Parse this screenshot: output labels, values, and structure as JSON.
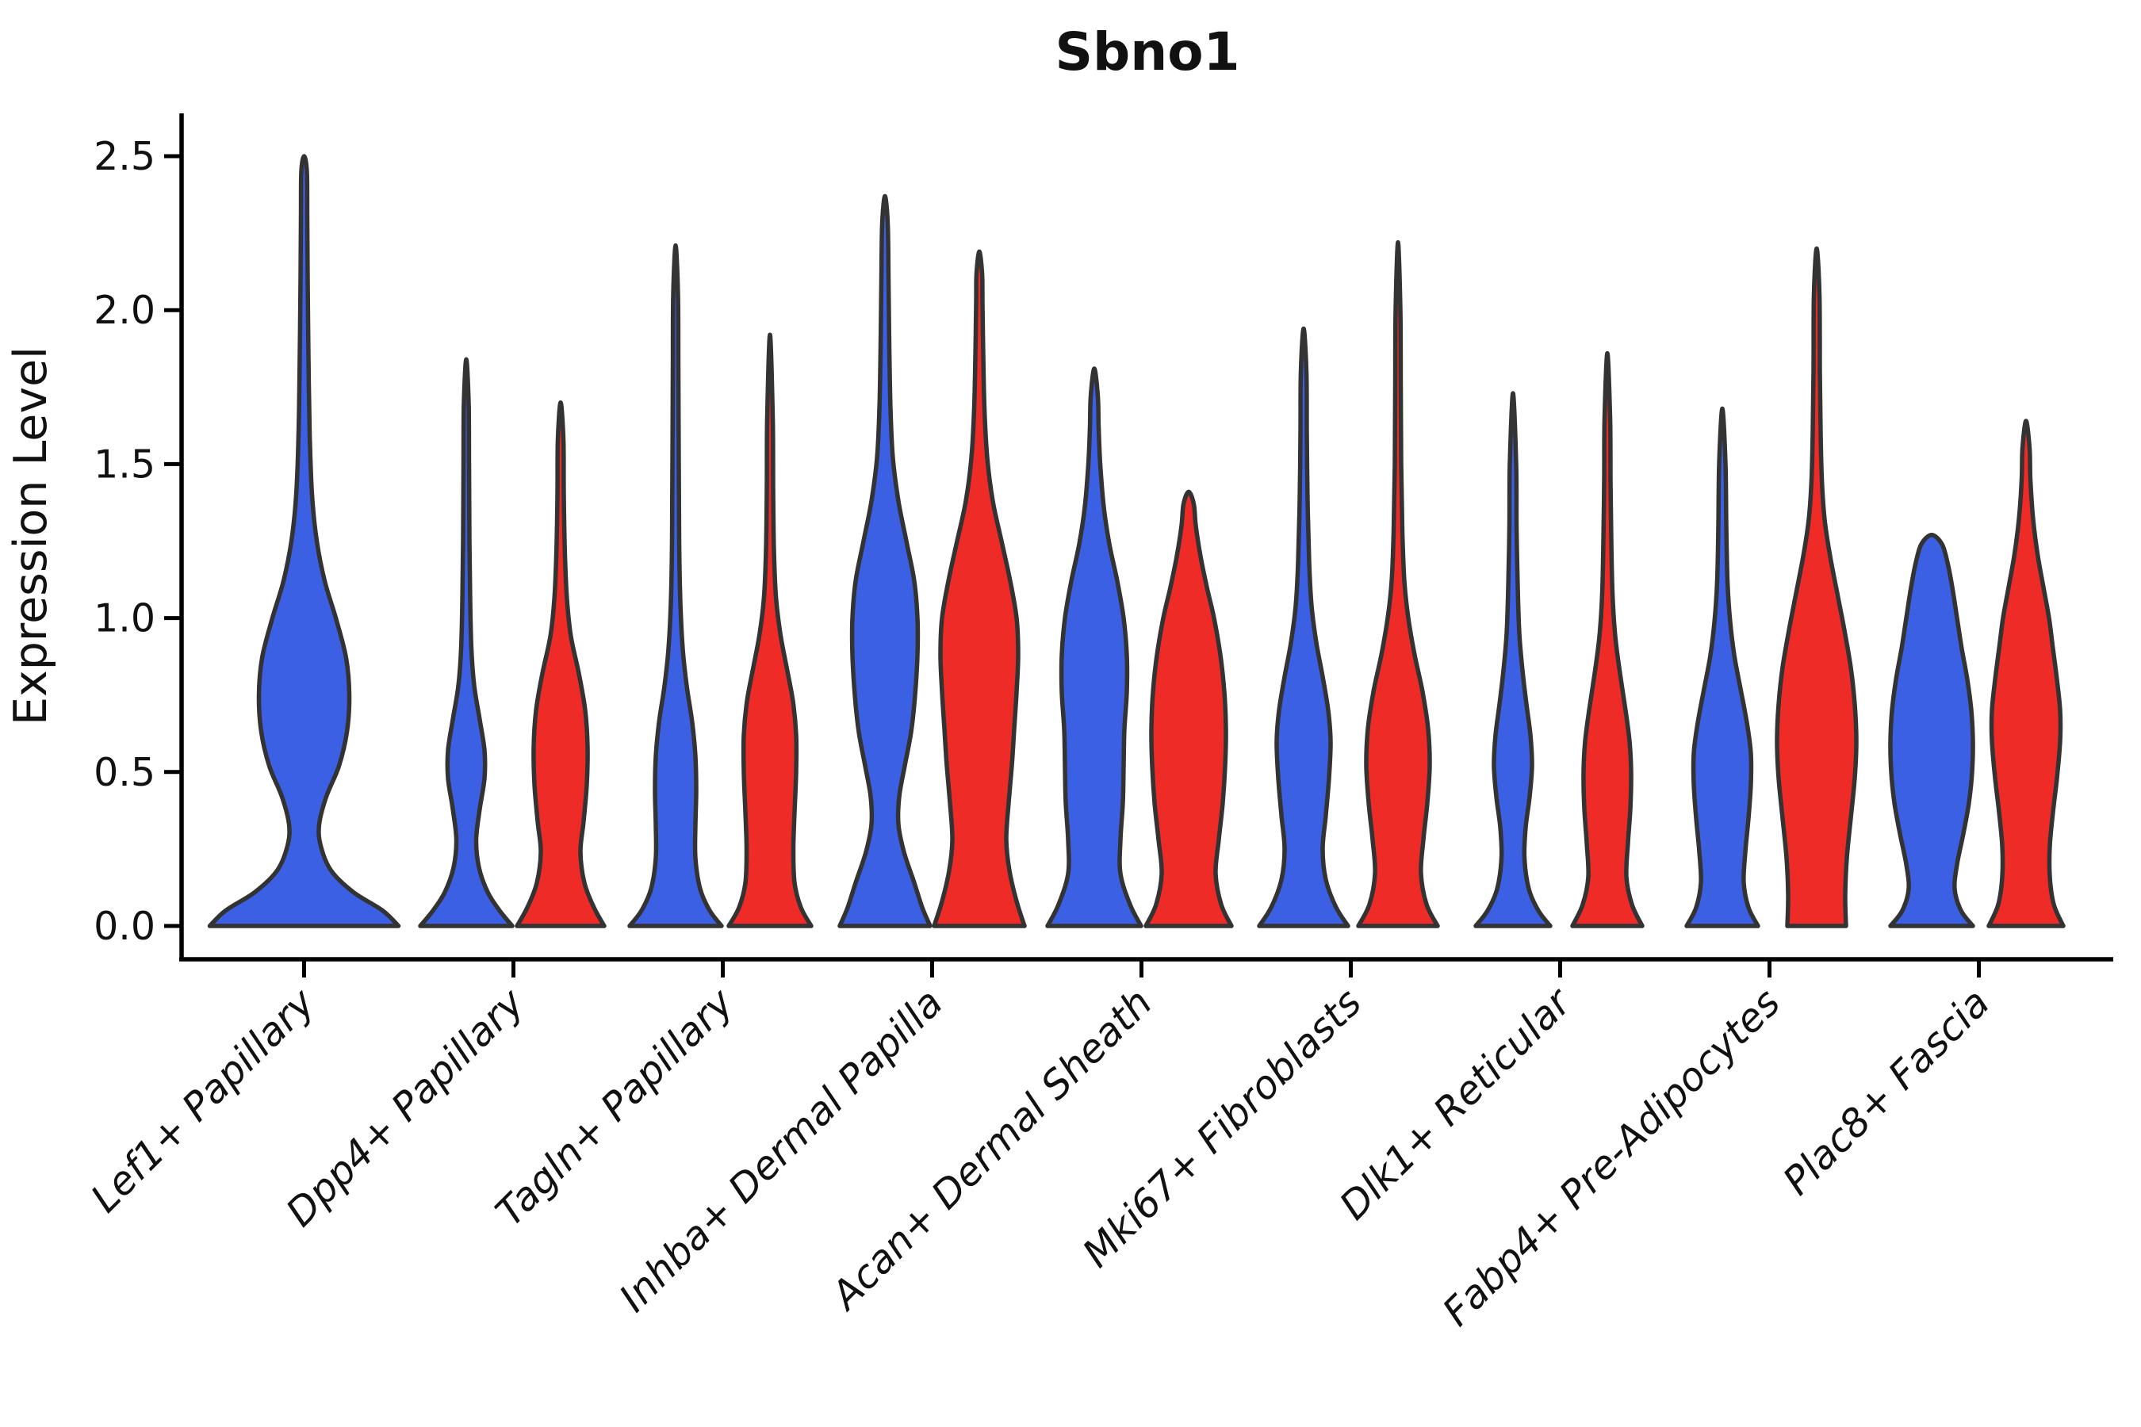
{
  "chart_data": {
    "type": "violin",
    "title": "Sbno1",
    "ylabel": "Expression Level",
    "xlabel": "",
    "ylim": [
      -0.11,
      2.65
    ],
    "grid": false,
    "legend": "none",
    "yticks": [
      "0.0",
      "0.5",
      "1.0",
      "1.5",
      "2.0",
      "2.5"
    ],
    "categories": [
      "Lef1+ Papillary",
      "Dpp4+ Papillary",
      "Tagln+ Papillary",
      "Inhba+ Dermal Papilla",
      "Acan+ Dermal Sheath",
      "Mki67+ Fibroblasts",
      "Dlk1+ Reticular",
      "Fabp4+ Pre-Adipocytes",
      "Plac8+ Fascia"
    ],
    "series_colors": {
      "blue": "#3C60E3",
      "red": "#EF2B27"
    },
    "outline_color": "#333333",
    "violins": [
      {
        "category": "Lef1+ Papillary",
        "group": 0,
        "color": "blue",
        "single": true,
        "max": 2.5,
        "profile": [
          [
            0,
            119
          ],
          [
            0.05,
            99
          ],
          [
            0.11,
            62
          ],
          [
            0.18,
            34
          ],
          [
            0.26,
            21
          ],
          [
            0.33,
            19
          ],
          [
            0.42,
            28
          ],
          [
            0.52,
            44
          ],
          [
            0.63,
            54
          ],
          [
            0.75,
            57
          ],
          [
            0.87,
            53
          ],
          [
            1.0,
            40
          ],
          [
            1.12,
            26
          ],
          [
            1.25,
            16
          ],
          [
            1.4,
            10
          ],
          [
            1.6,
            7
          ],
          [
            1.85,
            5.5
          ],
          [
            2.1,
            4.5
          ],
          [
            2.3,
            4
          ],
          [
            2.45,
            3.5
          ]
        ]
      },
      {
        "category": "Dpp4+ Papillary",
        "group": 1,
        "color": "blue",
        "single": false,
        "max": 1.84,
        "profile": [
          [
            0,
            58
          ],
          [
            0.05,
            42
          ],
          [
            0.11,
            27
          ],
          [
            0.19,
            16
          ],
          [
            0.28,
            12.5
          ],
          [
            0.38,
            17
          ],
          [
            0.48,
            23
          ],
          [
            0.57,
            23
          ],
          [
            0.67,
            17
          ],
          [
            0.78,
            10
          ],
          [
            0.9,
            6.5
          ],
          [
            1.05,
            5
          ],
          [
            1.25,
            4
          ],
          [
            1.5,
            3.5
          ],
          [
            1.7,
            3
          ]
        ]
      },
      {
        "category": "Dpp4+ Papillary",
        "group": 1,
        "color": "red",
        "single": false,
        "max": 1.7,
        "profile": [
          [
            0,
            55
          ],
          [
            0.06,
            42
          ],
          [
            0.14,
            30
          ],
          [
            0.24,
            25
          ],
          [
            0.34,
            29
          ],
          [
            0.46,
            33
          ],
          [
            0.58,
            34
          ],
          [
            0.7,
            31
          ],
          [
            0.82,
            23
          ],
          [
            0.94,
            13
          ],
          [
            1.06,
            8
          ],
          [
            1.2,
            5.5
          ],
          [
            1.4,
            4
          ],
          [
            1.58,
            3.5
          ]
        ]
      },
      {
        "category": "Tagln+ Papillary",
        "group": 2,
        "color": "blue",
        "single": false,
        "max": 2.21,
        "profile": [
          [
            0,
            58
          ],
          [
            0.05,
            43
          ],
          [
            0.12,
            31
          ],
          [
            0.22,
            25
          ],
          [
            0.33,
            25
          ],
          [
            0.44,
            26
          ],
          [
            0.55,
            25
          ],
          [
            0.66,
            21
          ],
          [
            0.78,
            14
          ],
          [
            0.9,
            9
          ],
          [
            1.05,
            6
          ],
          [
            1.25,
            4.5
          ],
          [
            1.5,
            4
          ],
          [
            1.8,
            3.5
          ],
          [
            2.05,
            3
          ]
        ]
      },
      {
        "category": "Tagln+ Papillary",
        "group": 2,
        "color": "red",
        "single": false,
        "max": 1.92,
        "profile": [
          [
            0,
            52
          ],
          [
            0.06,
            39
          ],
          [
            0.14,
            31
          ],
          [
            0.25,
            29.5
          ],
          [
            0.37,
            31
          ],
          [
            0.5,
            33
          ],
          [
            0.62,
            33
          ],
          [
            0.73,
            29
          ],
          [
            0.84,
            21
          ],
          [
            0.95,
            13
          ],
          [
            1.07,
            7.5
          ],
          [
            1.22,
            5
          ],
          [
            1.42,
            4
          ],
          [
            1.65,
            3.5
          ]
        ]
      },
      {
        "category": "Inhba+ Dermal Papilla",
        "group": 3,
        "color": "blue",
        "single": false,
        "max": 2.37,
        "profile": [
          [
            0,
            57
          ],
          [
            0.06,
            47
          ],
          [
            0.14,
            37
          ],
          [
            0.24,
            24
          ],
          [
            0.33,
            17
          ],
          [
            0.42,
            18
          ],
          [
            0.52,
            25
          ],
          [
            0.63,
            33
          ],
          [
            0.75,
            38
          ],
          [
            0.88,
            41
          ],
          [
            1.0,
            41
          ],
          [
            1.12,
            37
          ],
          [
            1.25,
            27
          ],
          [
            1.38,
            17
          ],
          [
            1.52,
            10
          ],
          [
            1.68,
            7
          ],
          [
            1.88,
            5.5
          ],
          [
            2.1,
            4.5
          ],
          [
            2.28,
            3.5
          ]
        ]
      },
      {
        "category": "Inhba+ Dermal Papilla",
        "group": 3,
        "color": "red",
        "single": false,
        "max": 2.19,
        "profile": [
          [
            0,
            57
          ],
          [
            0.08,
            47
          ],
          [
            0.18,
            38
          ],
          [
            0.28,
            34
          ],
          [
            0.4,
            37
          ],
          [
            0.52,
            41
          ],
          [
            0.64,
            44
          ],
          [
            0.76,
            47
          ],
          [
            0.88,
            49
          ],
          [
            1.0,
            47
          ],
          [
            1.12,
            39
          ],
          [
            1.25,
            28
          ],
          [
            1.38,
            17
          ],
          [
            1.52,
            10
          ],
          [
            1.68,
            6.5
          ],
          [
            1.85,
            5
          ],
          [
            2.02,
            4
          ],
          [
            2.12,
            3.5
          ]
        ]
      },
      {
        "category": "Acan+ Dermal Sheath",
        "group": 4,
        "color": "blue",
        "single": false,
        "max": 1.81,
        "profile": [
          [
            0,
            59
          ],
          [
            0.07,
            45
          ],
          [
            0.17,
            33
          ],
          [
            0.28,
            33
          ],
          [
            0.4,
            36
          ],
          [
            0.52,
            37
          ],
          [
            0.64,
            38
          ],
          [
            0.76,
            41
          ],
          [
            0.88,
            41
          ],
          [
            1.0,
            37
          ],
          [
            1.12,
            29
          ],
          [
            1.24,
            19
          ],
          [
            1.36,
            12
          ],
          [
            1.5,
            7.5
          ],
          [
            1.62,
            5.5
          ],
          [
            1.72,
            4.5
          ]
        ]
      },
      {
        "category": "Acan+ Dermal Sheath",
        "group": 4,
        "color": "red",
        "single": false,
        "max": 1.41,
        "profile": [
          [
            0,
            54
          ],
          [
            0.07,
            41
          ],
          [
            0.17,
            34
          ],
          [
            0.28,
            38
          ],
          [
            0.4,
            43
          ],
          [
            0.52,
            46
          ],
          [
            0.64,
            47
          ],
          [
            0.76,
            45
          ],
          [
            0.88,
            40
          ],
          [
            1.0,
            32
          ],
          [
            1.1,
            23
          ],
          [
            1.2,
            15
          ],
          [
            1.3,
            9
          ],
          [
            1.37,
            6.5
          ]
        ]
      },
      {
        "category": "Mki67+ Fibroblasts",
        "group": 5,
        "color": "blue",
        "single": false,
        "max": 1.94,
        "profile": [
          [
            0,
            56
          ],
          [
            0.06,
            41
          ],
          [
            0.15,
            28
          ],
          [
            0.25,
            24
          ],
          [
            0.36,
            28
          ],
          [
            0.48,
            32
          ],
          [
            0.6,
            34
          ],
          [
            0.7,
            31
          ],
          [
            0.81,
            24
          ],
          [
            0.92,
            16
          ],
          [
            1.04,
            10
          ],
          [
            1.18,
            7
          ],
          [
            1.38,
            5
          ],
          [
            1.6,
            4
          ],
          [
            1.8,
            3.5
          ]
        ]
      },
      {
        "category": "Mki67+ Fibroblasts",
        "group": 5,
        "color": "red",
        "single": false,
        "max": 2.22,
        "profile": [
          [
            0,
            50
          ],
          [
            0.07,
            36
          ],
          [
            0.17,
            29
          ],
          [
            0.28,
            32
          ],
          [
            0.4,
            37
          ],
          [
            0.52,
            40
          ],
          [
            0.64,
            38
          ],
          [
            0.76,
            31
          ],
          [
            0.88,
            21
          ],
          [
            1.0,
            13
          ],
          [
            1.12,
            8
          ],
          [
            1.28,
            5.5
          ],
          [
            1.5,
            4
          ],
          [
            1.75,
            3.5
          ],
          [
            2.0,
            3
          ]
        ]
      },
      {
        "category": "Dlk1+ Reticular",
        "group": 6,
        "color": "blue",
        "single": false,
        "max": 1.73,
        "profile": [
          [
            0,
            47
          ],
          [
            0.05,
            32
          ],
          [
            0.12,
            20
          ],
          [
            0.22,
            14.5
          ],
          [
            0.32,
            16
          ],
          [
            0.42,
            21
          ],
          [
            0.52,
            24
          ],
          [
            0.62,
            22
          ],
          [
            0.72,
            17
          ],
          [
            0.83,
            12
          ],
          [
            0.95,
            8
          ],
          [
            1.1,
            6
          ],
          [
            1.3,
            4.5
          ],
          [
            1.5,
            4
          ]
        ]
      },
      {
        "category": "Dlk1+ Reticular",
        "group": 6,
        "color": "red",
        "single": false,
        "max": 1.86,
        "profile": [
          [
            0,
            44
          ],
          [
            0.07,
            31
          ],
          [
            0.16,
            24
          ],
          [
            0.27,
            26
          ],
          [
            0.38,
            29
          ],
          [
            0.5,
            30
          ],
          [
            0.6,
            28
          ],
          [
            0.7,
            23
          ],
          [
            0.82,
            16
          ],
          [
            0.94,
            10
          ],
          [
            1.08,
            6.5
          ],
          [
            1.25,
            5
          ],
          [
            1.45,
            4
          ],
          [
            1.65,
            3.5
          ]
        ]
      },
      {
        "category": "Fabp4+ Pre-Adipocytes",
        "group": 7,
        "color": "blue",
        "single": false,
        "max": 1.68,
        "profile": [
          [
            0,
            45
          ],
          [
            0.06,
            33
          ],
          [
            0.14,
            27
          ],
          [
            0.24,
            29
          ],
          [
            0.35,
            33
          ],
          [
            0.46,
            36
          ],
          [
            0.56,
            36
          ],
          [
            0.66,
            31
          ],
          [
            0.77,
            23
          ],
          [
            0.88,
            15
          ],
          [
            1.0,
            9.5
          ],
          [
            1.12,
            6.5
          ],
          [
            1.3,
            5
          ],
          [
            1.5,
            4
          ]
        ]
      },
      {
        "category": "Fabp4+ Pre-Adipocytes",
        "group": 7,
        "color": "red",
        "single": false,
        "max": 2.2,
        "profile": [
          [
            0,
            37
          ],
          [
            0.1,
            36
          ],
          [
            0.22,
            38
          ],
          [
            0.35,
            43
          ],
          [
            0.48,
            48
          ],
          [
            0.6,
            50
          ],
          [
            0.72,
            48
          ],
          [
            0.84,
            43
          ],
          [
            0.96,
            35
          ],
          [
            1.08,
            26
          ],
          [
            1.2,
            17
          ],
          [
            1.32,
            10
          ],
          [
            1.45,
            6.5
          ],
          [
            1.6,
            5
          ],
          [
            1.8,
            4
          ],
          [
            2.05,
            3.5
          ]
        ]
      },
      {
        "category": "Plac8+ Fascia",
        "group": 8,
        "color": "blue",
        "single": false,
        "max": 1.27,
        "profile": [
          [
            0,
            52
          ],
          [
            0.05,
            37
          ],
          [
            0.12,
            29
          ],
          [
            0.2,
            32
          ],
          [
            0.3,
            40
          ],
          [
            0.4,
            47
          ],
          [
            0.5,
            51
          ],
          [
            0.6,
            52
          ],
          [
            0.7,
            50
          ],
          [
            0.8,
            45
          ],
          [
            0.9,
            38
          ],
          [
            1.0,
            32
          ],
          [
            1.1,
            26
          ],
          [
            1.18,
            20
          ],
          [
            1.24,
            13
          ]
        ]
      },
      {
        "category": "Plac8+ Fascia",
        "group": 8,
        "color": "red",
        "single": false,
        "max": 1.64,
        "profile": [
          [
            0,
            47
          ],
          [
            0.07,
            35
          ],
          [
            0.16,
            30
          ],
          [
            0.26,
            30
          ],
          [
            0.37,
            34
          ],
          [
            0.48,
            39
          ],
          [
            0.6,
            43
          ],
          [
            0.7,
            43
          ],
          [
            0.8,
            39
          ],
          [
            0.9,
            34
          ],
          [
            1.0,
            29
          ],
          [
            1.1,
            22
          ],
          [
            1.2,
            15
          ],
          [
            1.32,
            9
          ],
          [
            1.45,
            5.5
          ],
          [
            1.55,
            4.5
          ]
        ]
      }
    ]
  }
}
